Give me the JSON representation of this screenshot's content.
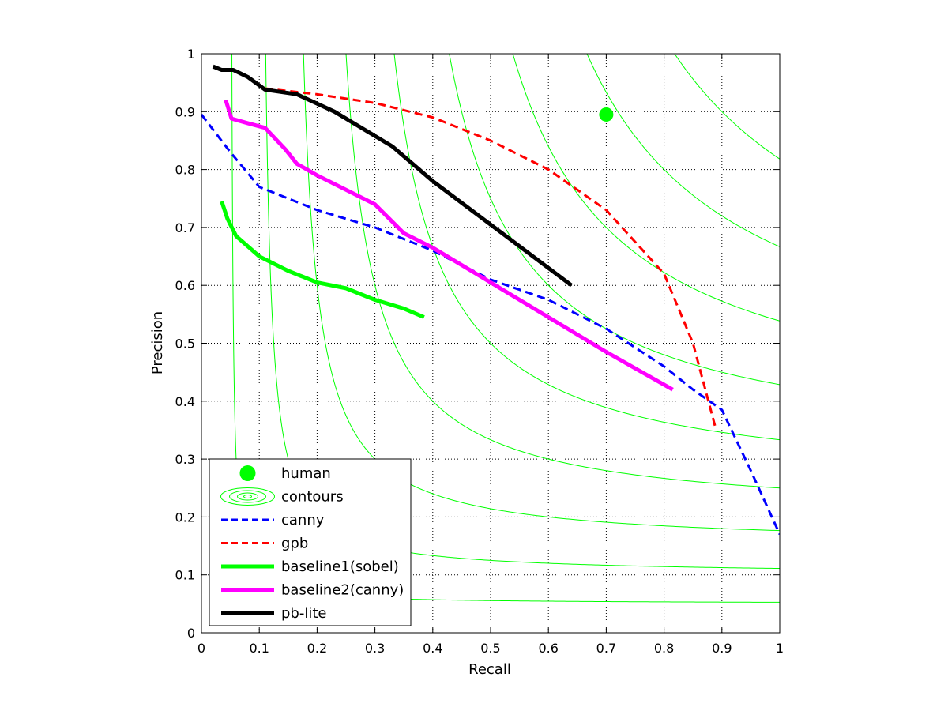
{
  "chart_data": {
    "type": "line",
    "title": "",
    "xlabel": "Recall",
    "ylabel": "Precision",
    "xlim": [
      0,
      1
    ],
    "ylim": [
      0,
      1
    ],
    "grid": true,
    "legend_position": "bottom-left",
    "x_ticks": [
      "0",
      "0.1",
      "0.2",
      "0.3",
      "0.4",
      "0.5",
      "0.6",
      "0.7",
      "0.8",
      "0.9",
      "1"
    ],
    "y_ticks": [
      "0",
      "0.1",
      "0.2",
      "0.3",
      "0.4",
      "0.5",
      "0.6",
      "0.7",
      "0.8",
      "0.9",
      "1"
    ],
    "contour_f_values": [
      0.1,
      0.2,
      0.3,
      0.4,
      0.5,
      0.6,
      0.7,
      0.8,
      0.9
    ],
    "series": [
      {
        "name": "human",
        "kind": "point",
        "color": "#00ff00",
        "points": [
          [
            0.7,
            0.895
          ]
        ]
      },
      {
        "name": "contours",
        "kind": "contour",
        "color": "#00ff00"
      },
      {
        "name": "canny",
        "kind": "line",
        "color": "#0000ff",
        "dash": true,
        "points": [
          [
            0,
            0.895
          ],
          [
            0.05,
            0.83
          ],
          [
            0.1,
            0.77
          ],
          [
            0.2,
            0.73
          ],
          [
            0.3,
            0.7
          ],
          [
            0.4,
            0.66
          ],
          [
            0.5,
            0.61
          ],
          [
            0.6,
            0.575
          ],
          [
            0.7,
            0.525
          ],
          [
            0.8,
            0.46
          ],
          [
            0.85,
            0.42
          ],
          [
            0.9,
            0.385
          ],
          [
            0.95,
            0.28
          ],
          [
            1.0,
            0.17
          ]
        ]
      },
      {
        "name": "gpb",
        "kind": "line",
        "color": "#ff0000",
        "dash": true,
        "points": [
          [
            0.11,
            0.94
          ],
          [
            0.2,
            0.93
          ],
          [
            0.3,
            0.915
          ],
          [
            0.4,
            0.89
          ],
          [
            0.5,
            0.85
          ],
          [
            0.6,
            0.8
          ],
          [
            0.7,
            0.73
          ],
          [
            0.8,
            0.62
          ],
          [
            0.85,
            0.5
          ],
          [
            0.89,
            0.35
          ]
        ]
      },
      {
        "name": "baseline1(sobel)",
        "kind": "line",
        "color": "#00ff00",
        "dash": false,
        "points": [
          [
            0.035,
            0.745
          ],
          [
            0.045,
            0.715
          ],
          [
            0.06,
            0.685
          ],
          [
            0.1,
            0.65
          ],
          [
            0.15,
            0.625
          ],
          [
            0.2,
            0.605
          ],
          [
            0.25,
            0.595
          ],
          [
            0.3,
            0.575
          ],
          [
            0.35,
            0.56
          ],
          [
            0.385,
            0.545
          ]
        ]
      },
      {
        "name": "baseline2(canny)",
        "kind": "line",
        "color": "#ff00ff",
        "dash": false,
        "points": [
          [
            0.042,
            0.92
          ],
          [
            0.052,
            0.888
          ],
          [
            0.08,
            0.88
          ],
          [
            0.11,
            0.872
          ],
          [
            0.145,
            0.835
          ],
          [
            0.165,
            0.81
          ],
          [
            0.2,
            0.79
          ],
          [
            0.3,
            0.74
          ],
          [
            0.35,
            0.69
          ],
          [
            0.4,
            0.665
          ],
          [
            0.5,
            0.605
          ],
          [
            0.6,
            0.545
          ],
          [
            0.7,
            0.485
          ],
          [
            0.815,
            0.42
          ]
        ]
      },
      {
        "name": "pb-lite",
        "kind": "line",
        "color": "#000000",
        "dash": false,
        "points": [
          [
            0.02,
            0.978
          ],
          [
            0.035,
            0.972
          ],
          [
            0.055,
            0.972
          ],
          [
            0.08,
            0.96
          ],
          [
            0.11,
            0.938
          ],
          [
            0.165,
            0.93
          ],
          [
            0.23,
            0.9
          ],
          [
            0.33,
            0.84
          ],
          [
            0.4,
            0.78
          ],
          [
            0.5,
            0.705
          ],
          [
            0.6,
            0.63
          ],
          [
            0.64,
            0.6
          ]
        ]
      }
    ]
  }
}
